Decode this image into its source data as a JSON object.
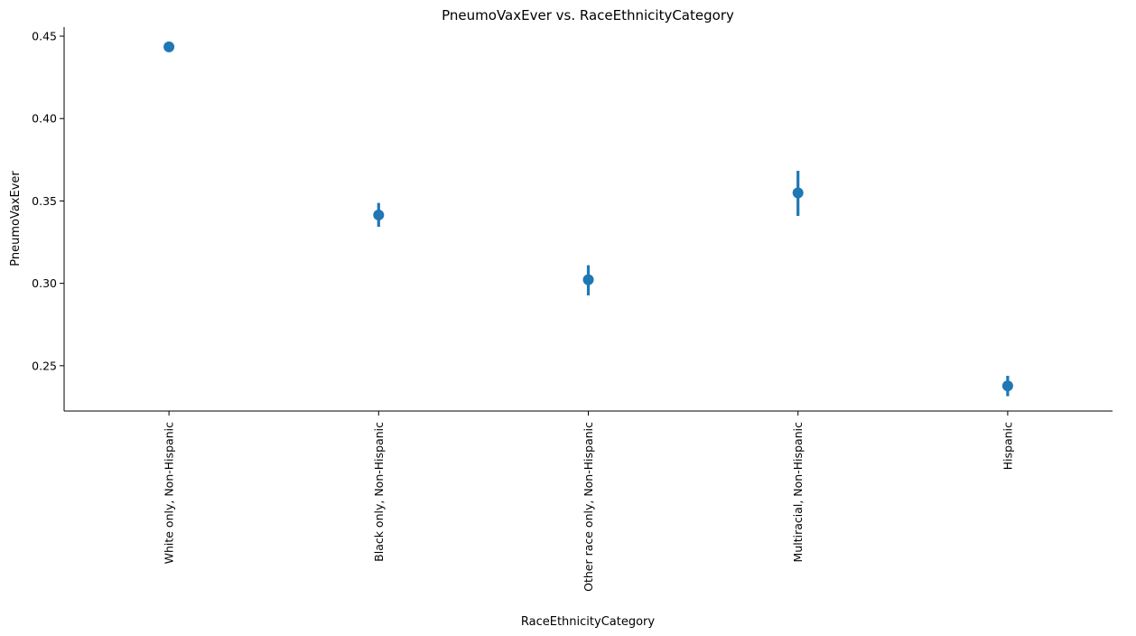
{
  "chart_data": {
    "type": "scatter",
    "title": "PneumoVaxEver vs. RaceEthnicityCategory",
    "xlabel": "RaceEthnicityCategory",
    "ylabel": "PneumoVaxEver",
    "categories": [
      "White only, Non-Hispanic",
      "Black only, Non-Hispanic",
      "Other race only, Non-Hispanic",
      "Multiracial, Non-Hispanic",
      "Hispanic"
    ],
    "series": [
      {
        "values": [
          0.4435,
          0.3415,
          0.3022,
          0.3549,
          0.2378
        ],
        "ci_low": [
          0.4425,
          0.3343,
          0.2927,
          0.3409,
          0.2315
        ],
        "ci_high": [
          0.4445,
          0.3488,
          0.311,
          0.3683,
          0.2439
        ],
        "color": "#1f77b4"
      }
    ],
    "ylim": [
      0.2225,
      0.4555
    ],
    "yticks": [
      0.25,
      0.3,
      0.35,
      0.4,
      0.45
    ],
    "ytick_labels": [
      "0.25",
      "0.30",
      "0.35",
      "0.40",
      "0.45"
    ],
    "grid": false,
    "legend": "none"
  }
}
